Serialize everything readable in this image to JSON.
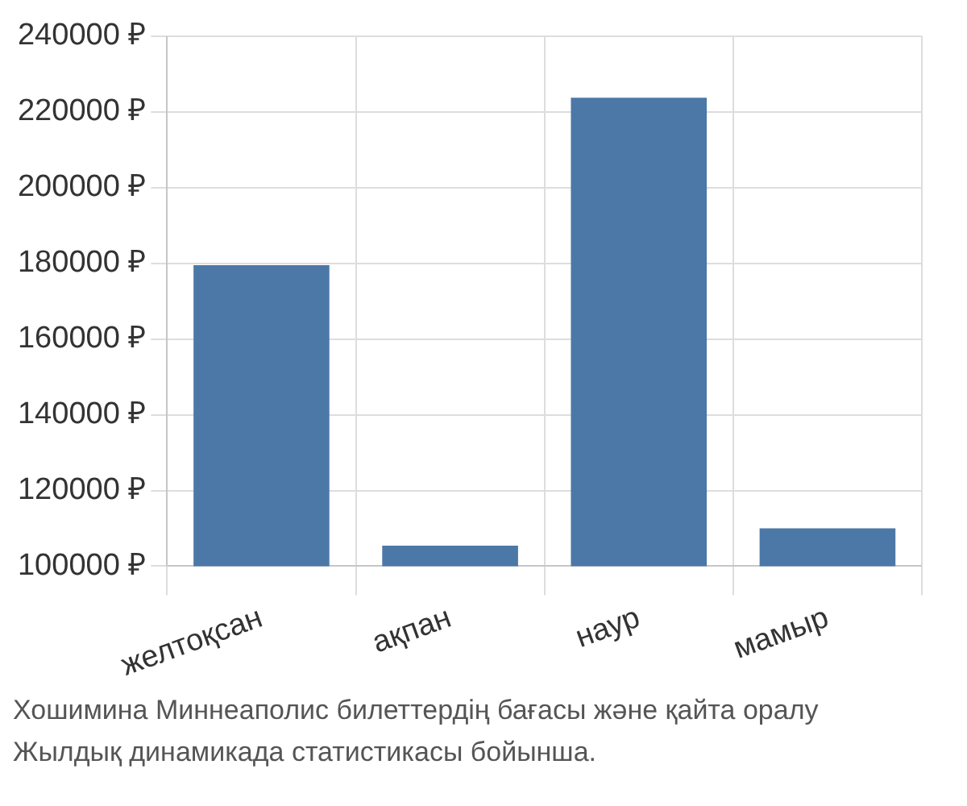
{
  "chart_data": {
    "type": "bar",
    "categories": [
      "желтоқсан",
      "ақпан",
      "наур",
      "мамыр"
    ],
    "values": [
      179500,
      105400,
      223700,
      110000
    ],
    "color": "#4c78a8",
    "ylim": [
      100000,
      240000
    ],
    "yticks": [
      {
        "value": 100000,
        "label": "100000 ₽"
      },
      {
        "value": 120000,
        "label": "120000 ₽"
      },
      {
        "value": 140000,
        "label": "140000 ₽"
      },
      {
        "value": 160000,
        "label": "160000 ₽"
      },
      {
        "value": 180000,
        "label": "180000 ₽"
      },
      {
        "value": 200000,
        "label": "200000 ₽"
      },
      {
        "value": 220000,
        "label": "220000 ₽"
      },
      {
        "value": 240000,
        "label": "240000 ₽"
      }
    ],
    "grid": true,
    "annotations": [
      "Хошимина Миннеаполис билеттердің бағасы және қайта оралу",
      "Жылдық динамикада статистикасы бойынша."
    ]
  }
}
